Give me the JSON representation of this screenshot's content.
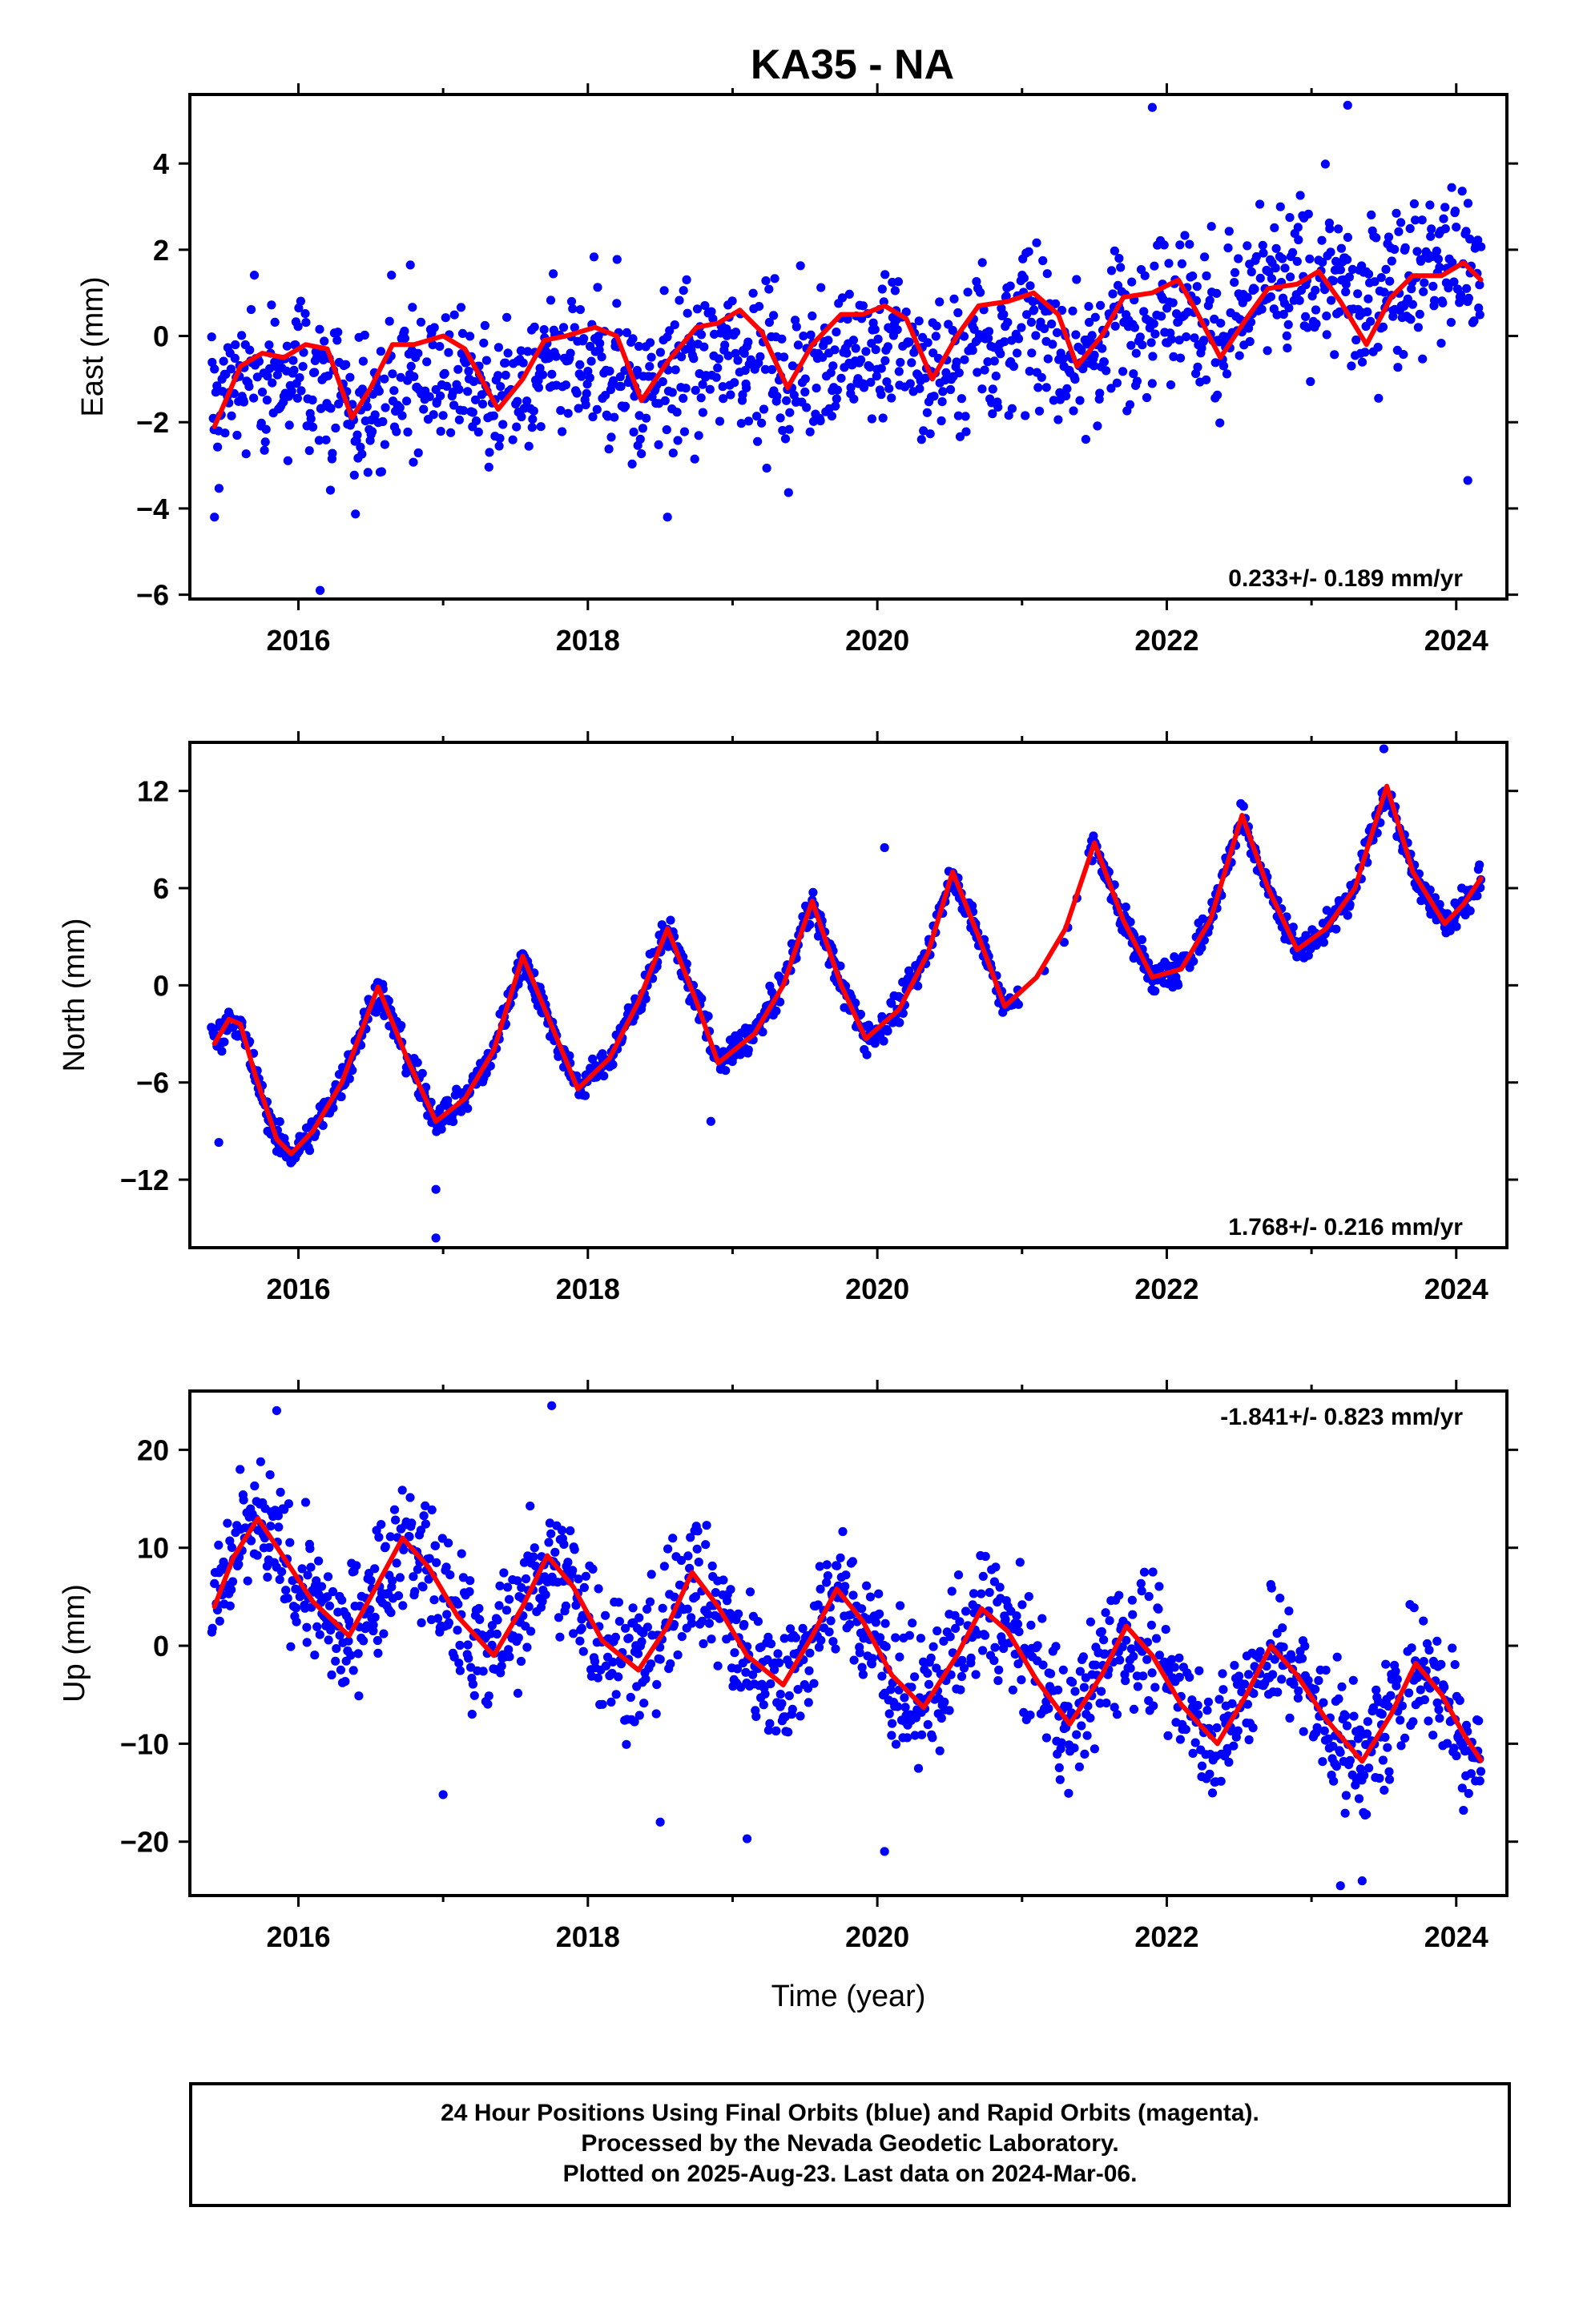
{
  "title": "KA35 - NA",
  "footer": {
    "lines": [
      "24 Hour Positions Using Final Orbits (blue) and Rapid Orbits (magenta).",
      "Processed by the Nevada Geodetic Laboratory.",
      "Plotted on 2025-Aug-23. Last data on 2024-Mar-06."
    ]
  },
  "colors": {
    "points": "#0000ff",
    "model": "#ff0000",
    "frame": "#000000"
  },
  "chart_data": [
    {
      "type": "scatter",
      "ylabel": "East (mm)",
      "xlabel": "",
      "xlim": [
        2015.25,
        2024.35
      ],
      "ylim": [
        -6.1,
        5.6
      ],
      "xticks": [
        2016,
        2018,
        2020,
        2022,
        2024
      ],
      "yticks": [
        -6,
        -4,
        -2,
        0,
        2,
        4
      ],
      "ytick_labels": [
        "−6",
        "−4",
        "−2",
        "0",
        "2",
        "4"
      ],
      "rate": "0.233+/- 0.189 mm/yr",
      "rate_position": "bottom-right",
      "series": [
        {
          "kind": "points",
          "x_range": [
            2015.4,
            2024.17
          ],
          "noise": 1.25,
          "trend_x": [
            2015.4,
            2016.4,
            2017.4,
            2018.4,
            2019.4,
            2020.4,
            2021.4,
            2022.4,
            2023.4,
            2024.17
          ],
          "trend_y": [
            -1.0,
            -1.9,
            -1.7,
            -1.5,
            -1.2,
            -1.0,
            -0.7,
            1.0,
            1.8,
            2.0
          ],
          "outliers": [
            [
              2016.15,
              -5.9
            ],
            [
              2015.42,
              -4.2
            ],
            [
              2018.55,
              -4.2
            ],
            [
              2021.9,
              5.3
            ],
            [
              2023.25,
              5.35
            ],
            [
              2024.08,
              -3.35
            ]
          ]
        },
        {
          "kind": "model",
          "x": [
            2015.42,
            2015.6,
            2015.75,
            2015.9,
            2016.05,
            2016.2,
            2016.37,
            2016.5,
            2016.65,
            2016.8,
            2017.0,
            2017.15,
            2017.38,
            2017.55,
            2017.7,
            2017.85,
            2018.05,
            2018.2,
            2018.37,
            2018.55,
            2018.75,
            2018.9,
            2019.05,
            2019.2,
            2019.38,
            2019.55,
            2019.75,
            2019.9,
            2020.05,
            2020.2,
            2020.38,
            2020.55,
            2020.7,
            2020.9,
            2021.08,
            2021.25,
            2021.38,
            2021.55,
            2021.7,
            2021.9,
            2022.08,
            2022.2,
            2022.37,
            2022.55,
            2022.7,
            2022.9,
            2023.05,
            2023.2,
            2023.38,
            2023.55,
            2023.7,
            2023.9,
            2024.05,
            2024.17
          ],
          "y": [
            -2.1,
            -0.7,
            -0.4,
            -0.5,
            -0.2,
            -0.3,
            -1.9,
            -1.2,
            -0.2,
            -0.2,
            0.0,
            -0.3,
            -1.7,
            -1.0,
            -0.1,
            0.0,
            0.2,
            0.0,
            -1.5,
            -0.6,
            0.2,
            0.3,
            0.6,
            0.1,
            -1.2,
            -0.2,
            0.5,
            0.5,
            0.7,
            0.4,
            -1.0,
            0.0,
            0.7,
            0.8,
            1.0,
            0.5,
            -0.7,
            0.0,
            0.9,
            1.0,
            1.3,
            0.6,
            -0.5,
            0.4,
            1.1,
            1.2,
            1.5,
            0.8,
            -0.2,
            0.9,
            1.4,
            1.4,
            1.7,
            1.3
          ]
        }
      ]
    },
    {
      "type": "scatter",
      "ylabel": "North (mm)",
      "xlabel": "",
      "xlim": [
        2015.25,
        2024.35
      ],
      "ylim": [
        -16.2,
        15.0
      ],
      "xticks": [
        2016,
        2018,
        2020,
        2022,
        2024
      ],
      "yticks": [
        -12,
        -6,
        0,
        6,
        12
      ],
      "ytick_labels": [
        "−12",
        "−6",
        "0",
        "6",
        "12"
      ],
      "rate": "1.768+/- 0.216 mm/yr",
      "rate_position": "bottom-right",
      "series": [
        {
          "kind": "points",
          "x_range": [
            2015.4,
            2024.17
          ],
          "noise": 0.9,
          "trend_x": [
            2015.4,
            2016.4,
            2017.4,
            2018.4,
            2019.4,
            2020.4,
            2021.4,
            2022.4,
            2023.4,
            2024.17
          ],
          "trend_y": [
            0,
            0,
            0,
            0,
            0,
            0,
            0,
            0,
            0,
            0
          ],
          "follow_model": true,
          "gaps": [
            [
              2020.95,
              2021.45
            ]
          ],
          "outliers": [
            [
              2016.95,
              -15.6
            ],
            [
              2016.95,
              -12.6
            ],
            [
              2018.85,
              -8.4
            ],
            [
              2015.45,
              -9.7
            ],
            [
              2020.05,
              8.5
            ],
            [
              2023.5,
              14.6
            ]
          ]
        },
        {
          "kind": "model",
          "x": [
            2015.42,
            2015.52,
            2015.6,
            2015.7,
            2015.85,
            2015.95,
            2016.1,
            2016.3,
            2016.55,
            2016.75,
            2016.95,
            2017.15,
            2017.35,
            2017.55,
            2017.75,
            2017.93,
            2018.15,
            2018.35,
            2018.55,
            2018.75,
            2018.9,
            2019.15,
            2019.35,
            2019.55,
            2019.75,
            2019.92,
            2020.15,
            2020.35,
            2020.52,
            2020.7,
            2020.88,
            2021.1,
            2021.3,
            2021.5,
            2021.7,
            2021.9,
            2022.1,
            2022.3,
            2022.52,
            2022.7,
            2022.9,
            2023.1,
            2023.3,
            2023.52,
            2023.7,
            2023.92,
            2024.05,
            2024.17
          ],
          "y": [
            -3.6,
            -2.1,
            -2.4,
            -5.5,
            -9.5,
            -10.4,
            -9.0,
            -6.0,
            -0.1,
            -4.5,
            -8.4,
            -7.0,
            -4.0,
            1.8,
            -2.5,
            -6.4,
            -4.5,
            -1.0,
            3.5,
            -1.0,
            -4.8,
            -3.0,
            0.0,
            5.2,
            0.0,
            -3.3,
            -1.5,
            2.0,
            7.0,
            3.0,
            -1.3,
            0.5,
            3.5,
            8.8,
            4.0,
            0.5,
            1.0,
            4.0,
            10.5,
            6.0,
            2.2,
            3.5,
            6.0,
            12.3,
            7.0,
            3.8,
            5.0,
            6.6
          ]
        }
      ]
    },
    {
      "type": "scatter",
      "ylabel": "Up (mm)",
      "xlabel": "Time (year)",
      "xlim": [
        2015.25,
        2024.35
      ],
      "ylim": [
        -25.5,
        26.0
      ],
      "xticks": [
        2016,
        2018,
        2020,
        2022,
        2024
      ],
      "yticks": [
        -20,
        -10,
        0,
        10,
        20
      ],
      "ytick_labels": [
        "−20",
        "−10",
        "0",
        "10",
        "20"
      ],
      "rate": "-1.841+/- 0.823 mm/yr",
      "rate_position": "top-right",
      "series": [
        {
          "kind": "points",
          "x_range": [
            2015.4,
            2024.17
          ],
          "noise": 4.6,
          "trend_x": [
            2015.4,
            2024.17
          ],
          "trend_y": [
            0,
            0
          ],
          "follow_model": true,
          "outliers": [
            [
              2017.75,
              24.5
            ],
            [
              2015.85,
              24.0
            ],
            [
              2020.05,
              -21.0
            ],
            [
              2023.2,
              -24.5
            ],
            [
              2023.35,
              -24.0
            ],
            [
              2017.0,
              -15.2
            ],
            [
              2019.1,
              -19.7
            ],
            [
              2018.5,
              -18.0
            ],
            [
              2024.05,
              -16.8
            ]
          ]
        },
        {
          "kind": "model",
          "x": [
            2015.42,
            2015.55,
            2015.72,
            2015.9,
            2016.1,
            2016.35,
            2016.5,
            2016.72,
            2016.9,
            2017.1,
            2017.35,
            2017.55,
            2017.72,
            2017.9,
            2018.1,
            2018.35,
            2018.55,
            2018.72,
            2018.9,
            2019.1,
            2019.35,
            2019.55,
            2019.72,
            2019.9,
            2020.1,
            2020.32,
            2020.55,
            2020.72,
            2020.9,
            2021.1,
            2021.33,
            2021.55,
            2021.72,
            2021.9,
            2022.1,
            2022.35,
            2022.55,
            2022.72,
            2022.9,
            2023.1,
            2023.35,
            2023.55,
            2023.72,
            2023.9,
            2024.05,
            2024.17
          ],
          "y": [
            4.0,
            9.0,
            13.0,
            9.0,
            4.5,
            1.0,
            5.0,
            11.0,
            8.0,
            3.0,
            -1.0,
            4.0,
            9.2,
            6.0,
            0.5,
            -2.5,
            2.0,
            7.5,
            4.0,
            -1.0,
            -4.0,
            1.0,
            5.8,
            2.5,
            -3.0,
            -6.3,
            -1.0,
            3.8,
            1.5,
            -3.5,
            -8.0,
            -3.0,
            2.0,
            -1.0,
            -6.0,
            -10.0,
            -5.0,
            0.0,
            -3.0,
            -7.5,
            -11.8,
            -7.0,
            -1.8,
            -5.0,
            -9.0,
            -11.7
          ]
        }
      ]
    }
  ]
}
